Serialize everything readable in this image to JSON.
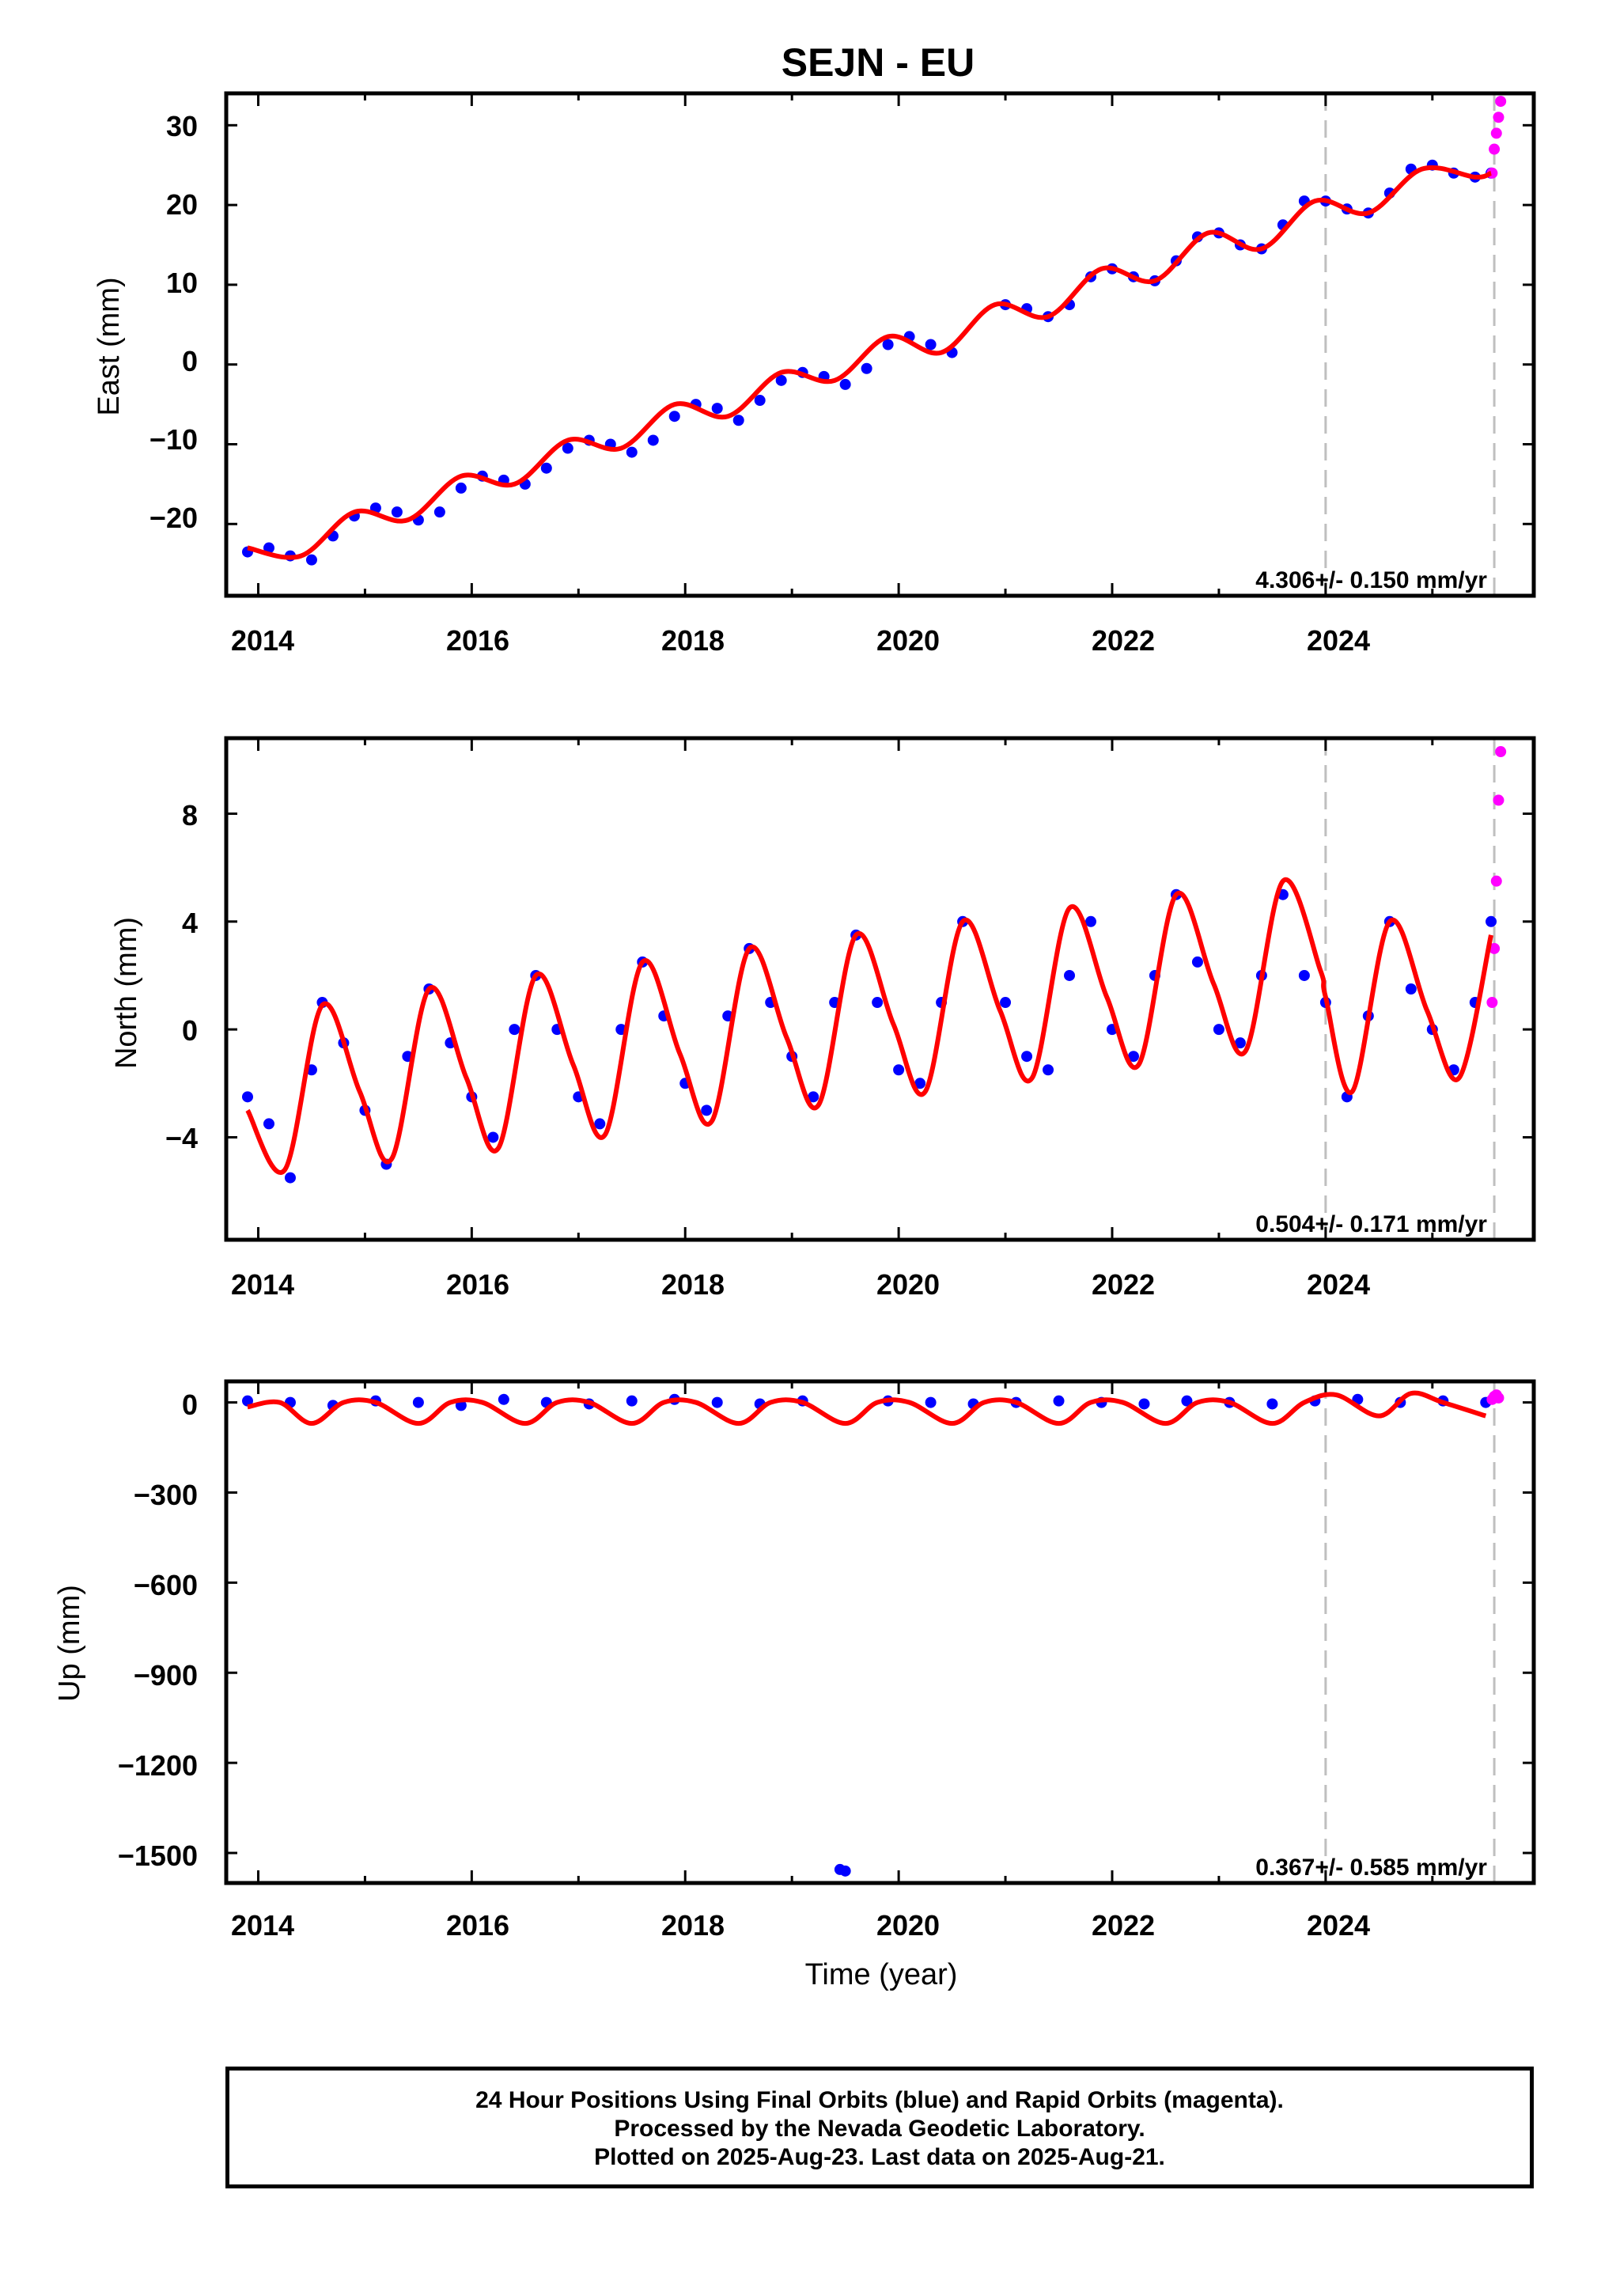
{
  "title": "SEJN - EU",
  "x_tick_labels": [
    "2014",
    "2016",
    "2018",
    "2020",
    "2022",
    "2024"
  ],
  "x_axis_label": "Time (year)",
  "footer": {
    "line1": "24 Hour Positions Using Final Orbits (blue) and Rapid Orbits (magenta).",
    "line2": "Processed by the Nevada Geodetic Laboratory.",
    "line3": "Plotted on 2025-Aug-23. Last data on 2025-Aug-21."
  },
  "colors": {
    "final_orbits": "#0000ff",
    "rapid_orbits": "#ff00ff",
    "model_fit": "#ff0000",
    "reference_lines": "#bfbfbf"
  },
  "panels": [
    {
      "ylabel": "East (mm)",
      "yticks": [
        "30",
        "20",
        "10",
        "0",
        "−10",
        "−20"
      ],
      "rate": "4.306+/- 0.150 mm/yr"
    },
    {
      "ylabel": "North (mm)",
      "yticks": [
        "8",
        "4",
        "0",
        "−4"
      ],
      "rate": "0.504+/- 0.171 mm/yr"
    },
    {
      "ylabel": "Up (mm)",
      "yticks": [
        "0",
        "−300",
        "−600",
        "−900",
        "−1200",
        "−1500"
      ],
      "rate": "0.367+/- 0.585 mm/yr"
    }
  ],
  "chart_data": [
    {
      "type": "scatter",
      "title": "SEJN - EU",
      "ylabel": "East (mm)",
      "xlim": [
        2013.7,
        2025.95
      ],
      "ylim": [
        -29,
        34
      ],
      "yticks": [
        -20,
        -10,
        0,
        10,
        20,
        30
      ],
      "xticks": [
        2014,
        2016,
        2018,
        2020,
        2022,
        2024
      ],
      "vertical_reference_lines": [
        2024.0,
        2025.58
      ],
      "rate_annotation": "4.306+/- 0.150 mm/yr",
      "series": [
        {
          "marker": "blue dots",
          "x": [
            2013.9,
            2014.1,
            2014.3,
            2014.5,
            2014.7,
            2014.9,
            2015.1,
            2015.3,
            2015.5,
            2015.7,
            2015.9,
            2016.1,
            2016.3,
            2016.5,
            2016.7,
            2016.9,
            2017.1,
            2017.3,
            2017.5,
            2017.7,
            2017.9,
            2018.1,
            2018.3,
            2018.5,
            2018.7,
            2018.9,
            2019.1,
            2019.3,
            2019.5,
            2019.7,
            2019.9,
            2020.1,
            2020.3,
            2020.5,
            2021.0,
            2021.2,
            2021.4,
            2021.6,
            2021.8,
            2022.0,
            2022.2,
            2022.4,
            2022.6,
            2022.8,
            2023.0,
            2023.2,
            2023.4,
            2023.6,
            2023.8,
            2024.0,
            2024.2,
            2024.4,
            2024.6,
            2024.8,
            2025.0,
            2025.2,
            2025.4,
            2025.55
          ],
          "y": [
            -23.5,
            -23.0,
            -24.0,
            -24.5,
            -21.5,
            -19.0,
            -18.0,
            -18.5,
            -19.5,
            -18.5,
            -15.5,
            -14.0,
            -14.5,
            -15.0,
            -13.0,
            -10.5,
            -9.5,
            -10.0,
            -11.0,
            -9.5,
            -6.5,
            -5.0,
            -5.5,
            -7.0,
            -4.5,
            -2.0,
            -1.0,
            -1.5,
            -2.5,
            -0.5,
            2.5,
            3.5,
            2.5,
            1.5,
            7.5,
            7.0,
            6.0,
            7.5,
            11.0,
            12.0,
            11.0,
            10.5,
            13.0,
            16.0,
            16.5,
            15.0,
            14.5,
            17.5,
            20.5,
            20.5,
            19.5,
            19.0,
            21.5,
            24.5,
            25.0,
            24.0,
            23.5,
            24.0
          ]
        },
        {
          "marker": "magenta dots",
          "x": [
            2025.56,
            2025.58,
            2025.6,
            2025.62,
            2025.64
          ],
          "y": [
            24.0,
            27.0,
            29.0,
            31.0,
            33.0
          ]
        },
        {
          "marker": "red line (model fit)",
          "x": [
            2013.9,
            2014.4,
            2014.9,
            2015.4,
            2015.9,
            2016.4,
            2016.9,
            2017.4,
            2017.9,
            2018.4,
            2018.9,
            2019.4,
            2019.9,
            2020.4,
            2020.9,
            2021.4,
            2021.9,
            2022.4,
            2022.9,
            2023.4,
            2023.9,
            2024.4,
            2024.9,
            2025.4,
            2025.55
          ],
          "y": [
            -23.0,
            -24.0,
            -18.5,
            -19.5,
            -14.0,
            -15.0,
            -9.5,
            -10.5,
            -5.0,
            -6.5,
            -1.0,
            -2.0,
            3.5,
            1.5,
            7.5,
            6.0,
            12.0,
            10.5,
            16.5,
            14.5,
            20.5,
            19.0,
            24.5,
            23.5,
            24.0
          ]
        }
      ]
    },
    {
      "type": "scatter",
      "ylabel": "North (mm)",
      "xlim": [
        2013.7,
        2025.95
      ],
      "ylim": [
        -7.8,
        10.8
      ],
      "yticks": [
        -4,
        0,
        4,
        8
      ],
      "xticks": [
        2014,
        2016,
        2018,
        2020,
        2022,
        2024
      ],
      "vertical_reference_lines": [
        2024.0,
        2025.58
      ],
      "rate_annotation": "0.504+/- 0.171 mm/yr",
      "series": [
        {
          "marker": "blue dots",
          "x": [
            2013.9,
            2014.1,
            2014.3,
            2014.5,
            2014.6,
            2014.8,
            2015.0,
            2015.2,
            2015.4,
            2015.6,
            2015.8,
            2016.0,
            2016.2,
            2016.4,
            2016.6,
            2016.8,
            2017.0,
            2017.2,
            2017.4,
            2017.6,
            2017.8,
            2018.0,
            2018.2,
            2018.4,
            2018.6,
            2018.8,
            2019.0,
            2019.2,
            2019.4,
            2019.6,
            2019.8,
            2020.0,
            2020.2,
            2020.4,
            2020.6,
            2021.0,
            2021.2,
            2021.4,
            2021.6,
            2021.8,
            2022.0,
            2022.2,
            2022.4,
            2022.6,
            2022.8,
            2023.0,
            2023.2,
            2023.4,
            2023.6,
            2023.8,
            2024.0,
            2024.2,
            2024.4,
            2024.6,
            2024.8,
            2025.0,
            2025.2,
            2025.4,
            2025.55
          ],
          "y": [
            -2.5,
            -3.5,
            -5.5,
            -1.5,
            1.0,
            -0.5,
            -3.0,
            -5.0,
            -1.0,
            1.5,
            -0.5,
            -2.5,
            -4.0,
            0.0,
            2.0,
            0.0,
            -2.5,
            -3.5,
            0.0,
            2.5,
            0.5,
            -2.0,
            -3.0,
            0.5,
            3.0,
            1.0,
            -1.0,
            -2.5,
            1.0,
            3.5,
            1.0,
            -1.5,
            -2.0,
            1.0,
            4.0,
            1.0,
            -1.0,
            -1.5,
            2.0,
            4.0,
            0.0,
            -1.0,
            2.0,
            5.0,
            2.5,
            0.0,
            -0.5,
            2.0,
            5.0,
            2.0,
            1.0,
            -2.5,
            0.5,
            4.0,
            1.5,
            0.0,
            -1.5,
            1.0,
            4.0
          ]
        },
        {
          "marker": "magenta dots",
          "x": [
            2025.56,
            2025.58,
            2025.6,
            2025.62,
            2025.64
          ],
          "y": [
            1.0,
            3.0,
            5.5,
            8.5,
            10.3
          ]
        },
        {
          "marker": "red line (model fit)",
          "x": [
            2013.9,
            2014.25,
            2014.6,
            2014.95,
            2015.25,
            2015.6,
            2015.95,
            2016.25,
            2016.6,
            2016.95,
            2017.25,
            2017.6,
            2017.95,
            2018.25,
            2018.6,
            2018.95,
            2019.25,
            2019.6,
            2019.95,
            2020.25,
            2020.6,
            2020.95,
            2021.25,
            2021.6,
            2021.95,
            2022.25,
            2022.6,
            2022.95,
            2023.25,
            2023.6,
            2023.95,
            2024.0,
            2024.25,
            2024.6,
            2024.95,
            2025.25,
            2025.55
          ],
          "y": [
            -3.0,
            -5.2,
            0.9,
            -2.3,
            -4.8,
            1.5,
            -1.8,
            -4.4,
            2.0,
            -1.3,
            -3.9,
            2.5,
            -0.9,
            -3.4,
            3.0,
            -0.3,
            -2.8,
            3.5,
            0.2,
            -2.3,
            4.0,
            0.7,
            -1.8,
            4.5,
            1.2,
            -1.3,
            5.0,
            1.7,
            -0.8,
            5.5,
            2.2,
            1.2,
            -2.3,
            4.0,
            0.7,
            -1.8,
            3.5
          ]
        }
      ]
    },
    {
      "type": "scatter",
      "ylabel": "Up (mm)",
      "xlabel": "Time (year)",
      "xlim": [
        2013.7,
        2025.95
      ],
      "ylim": [
        -1600,
        70
      ],
      "yticks": [
        -1500,
        -1200,
        -900,
        -600,
        -300,
        0
      ],
      "xticks": [
        2014,
        2016,
        2018,
        2020,
        2022,
        2024
      ],
      "vertical_reference_lines": [
        2024.0,
        2025.58
      ],
      "rate_annotation": "0.367+/- 0.585 mm/yr",
      "series": [
        {
          "marker": "blue dots",
          "x": [
            2013.9,
            2014.3,
            2014.7,
            2015.1,
            2015.5,
            2015.9,
            2016.3,
            2016.7,
            2017.1,
            2017.5,
            2017.9,
            2018.3,
            2018.7,
            2019.1,
            2019.45,
            2019.5,
            2019.9,
            2020.3,
            2020.7,
            2021.1,
            2021.5,
            2021.9,
            2022.3,
            2022.7,
            2023.1,
            2023.5,
            2023.9,
            2024.3,
            2024.7,
            2025.1,
            2025.5
          ],
          "y": [
            5,
            0,
            -10,
            5,
            0,
            -10,
            10,
            0,
            -5,
            5,
            10,
            0,
            -5,
            5,
            -1555,
            -1560,
            5,
            0,
            -5,
            0,
            5,
            0,
            -5,
            5,
            0,
            -5,
            5,
            10,
            0,
            5,
            0
          ]
        },
        {
          "marker": "magenta dots",
          "x": [
            2025.56,
            2025.58,
            2025.6,
            2025.62
          ],
          "y": [
            10,
            20,
            25,
            15
          ]
        },
        {
          "marker": "red line (model fit)",
          "x": [
            2013.9,
            2014.2,
            2014.5,
            2014.8,
            2015.1,
            2015.5,
            2015.8,
            2016.1,
            2016.5,
            2016.8,
            2017.1,
            2017.5,
            2017.8,
            2018.1,
            2018.5,
            2018.8,
            2019.1,
            2019.5,
            2019.8,
            2020.1,
            2020.5,
            2020.8,
            2021.1,
            2021.5,
            2021.8,
            2022.1,
            2022.5,
            2022.8,
            2023.1,
            2023.5,
            2023.8,
            2024.1,
            2024.5,
            2024.8,
            2025.1,
            2025.5
          ],
          "y": [
            -15,
            0,
            -70,
            0,
            0,
            -70,
            0,
            0,
            -70,
            0,
            0,
            -70,
            0,
            0,
            -70,
            0,
            0,
            -70,
            0,
            0,
            -70,
            0,
            0,
            -70,
            0,
            0,
            -70,
            0,
            0,
            -70,
            0,
            25,
            -45,
            30,
            0,
            -45
          ]
        }
      ]
    }
  ]
}
